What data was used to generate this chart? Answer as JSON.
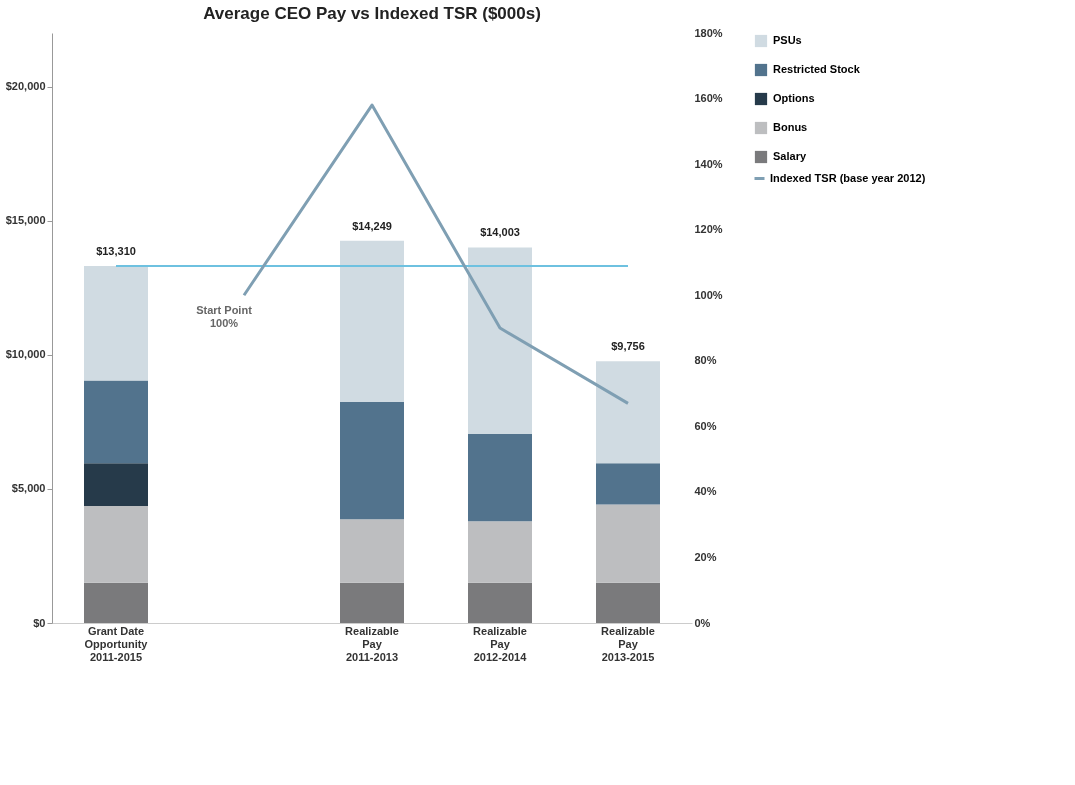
{
  "chart_data": {
    "type": "bar",
    "title": "Average CEO Pay vs Indexed TSR ($000s)",
    "categories": [
      "Grant Date\nOpportunity\n\n2011-2015",
      null,
      "Realizable\nPay\n\n2011-2013",
      "Realizable\nPay\n\n2012-2014",
      "Realizable\nPay\n\n2013-2015"
    ],
    "stacked": true,
    "series": [
      {
        "name": "Salary",
        "color": "#7a7a7c",
        "values": [
          1500,
          null,
          1500,
          1500,
          1500
        ]
      },
      {
        "name": "Bonus",
        "color": "#bdbec0",
        "values": [
          2860,
          null,
          2370,
          2290,
          2920
        ]
      },
      {
        "name": "Options",
        "color": "#263a4a",
        "values": [
          1600,
          null,
          null,
          null,
          null
        ]
      },
      {
        "name": "Restricted Stock",
        "color": "#52738d",
        "values": [
          3080,
          null,
          4380,
          3260,
          1540
        ]
      },
      {
        "name": "PSUs",
        "color": "#d0dbe2",
        "values": [
          4270,
          null,
          5999,
          6953,
          3796
        ]
      },
      {
        "name": "Indexed TSR (base year 2012)",
        "type": "line",
        "axis": "y2",
        "color": "#7f9fb3",
        "values": [
          null,
          100,
          158,
          90,
          67
        ]
      }
    ],
    "totals": [
      "$13,310",
      null,
      "$14,249",
      "$14,003",
      "$9,756"
    ],
    "ylim": [
      0,
      22000
    ],
    "yticks": [
      {
        "value": 0,
        "label": "$0"
      },
      {
        "value": 5000,
        "label": "$5,000"
      },
      {
        "value": 10000,
        "label": "$10,000"
      },
      {
        "value": 15000,
        "label": "$15,000"
      },
      {
        "value": 20000,
        "label": "$20,000"
      }
    ],
    "y2lim": [
      0,
      180
    ],
    "y2ticks": [
      {
        "value": 0,
        "label": "0%"
      },
      {
        "value": 20,
        "label": "20%"
      },
      {
        "value": 40,
        "label": "40%"
      },
      {
        "value": 60,
        "label": "60%"
      },
      {
        "value": 80,
        "label": "80%"
      },
      {
        "value": 100,
        "label": "100%"
      },
      {
        "value": 120,
        "label": "120%"
      },
      {
        "value": 140,
        "label": "140%"
      },
      {
        "value": 160,
        "label": "160%"
      },
      {
        "value": 180,
        "label": "180%"
      }
    ],
    "ref_lines": [
      {
        "axis": "y",
        "value": 13310,
        "color": "#6ec1e0"
      }
    ],
    "annotations": [
      "Start Point\n100%"
    ],
    "legend": "right",
    "grid": false
  }
}
